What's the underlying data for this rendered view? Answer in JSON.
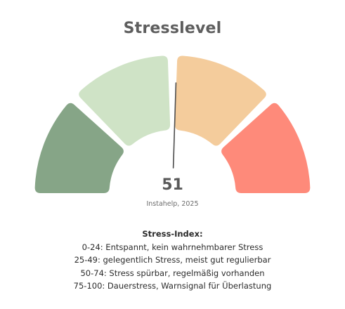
{
  "chart_data": {
    "type": "gauge",
    "title": "Stresslevel",
    "value": 51,
    "value_label": "51",
    "min": 0,
    "max": 100,
    "segments": [
      {
        "range": [
          0,
          24
        ],
        "color": "#86a587"
      },
      {
        "range": [
          25,
          49
        ],
        "color": "#cfe3c6"
      },
      {
        "range": [
          50,
          74
        ],
        "color": "#f4cc9c"
      },
      {
        "range": [
          75,
          100
        ],
        "color": "#fe8a7a"
      }
    ],
    "needle_color": "#4d4d4d",
    "source": "Instahelp, 2025",
    "legend": {
      "title": "Stress-Index:",
      "items": [
        "0-24: Entspannt, kein wahrnehmbarer Stress",
        "25-49: gelegentlich Stress, meist gut regulierbar",
        "50-74: Stress spürbar, regelmäßig vorhanden",
        "75-100: Dauerstress, Warnsignal für Überlastung"
      ]
    }
  }
}
